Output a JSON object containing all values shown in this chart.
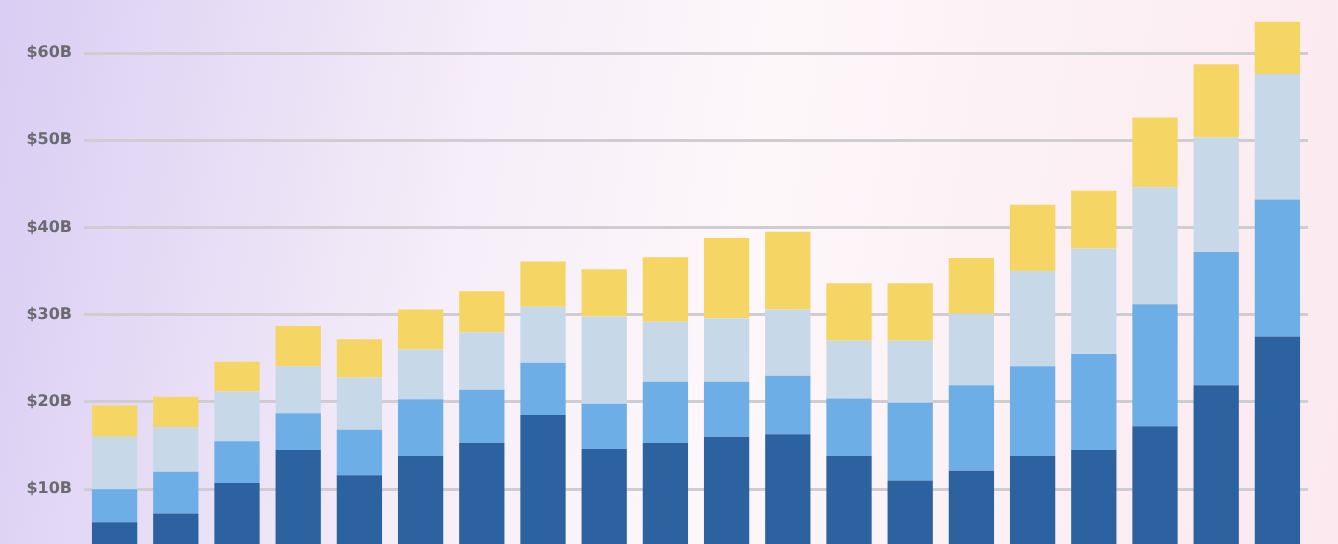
{
  "chart_data": {
    "type": "bar",
    "stacked": true,
    "categories": [
      null,
      null,
      null,
      null,
      null,
      null,
      null,
      null,
      null,
      null,
      null,
      null,
      null,
      null,
      null,
      null,
      null,
      null,
      null,
      null
    ],
    "series": [
      {
        "color": "#2c62a0",
        "values": [
          6.2,
          7.2,
          10.7,
          14.5,
          11.6,
          13.8,
          15.3,
          18.5,
          14.6,
          15.3,
          16.0,
          16.3,
          13.8,
          11.0,
          12.1,
          13.8,
          14.5,
          17.2,
          21.9,
          27.5
        ]
      },
      {
        "color": "#6eaee6",
        "values": [
          3.8,
          4.8,
          4.8,
          4.2,
          5.2,
          6.5,
          6.1,
          6.0,
          5.2,
          7.0,
          6.3,
          6.7,
          6.6,
          8.9,
          9.8,
          10.3,
          11.0,
          14.0,
          15.3,
          15.7
        ]
      },
      {
        "color": "#c7d9e8",
        "values": [
          6.0,
          5.1,
          5.7,
          5.4,
          6.0,
          5.7,
          6.6,
          6.4,
          10.0,
          6.9,
          7.3,
          7.6,
          6.6,
          7.1,
          8.2,
          10.9,
          12.1,
          13.4,
          13.1,
          14.4
        ]
      },
      {
        "color": "#f5d564",
        "values": [
          3.6,
          3.5,
          3.4,
          4.6,
          4.4,
          4.6,
          4.7,
          5.2,
          5.4,
          7.4,
          9.2,
          8.9,
          6.6,
          6.6,
          6.4,
          7.6,
          6.6,
          8.0,
          8.4,
          6.0
        ]
      }
    ],
    "ylim": [
      0,
      63.6
    ],
    "yticks": [
      {
        "value": 10,
        "label": "$10B"
      },
      {
        "value": 20,
        "label": "$20B"
      },
      {
        "value": 30,
        "label": "$30B"
      },
      {
        "value": 40,
        "label": "$40B"
      },
      {
        "value": 50,
        "label": "$50B"
      },
      {
        "value": 60,
        "label": "$60B"
      }
    ],
    "grid": "y",
    "tick_labels": "y",
    "legend": false
  }
}
